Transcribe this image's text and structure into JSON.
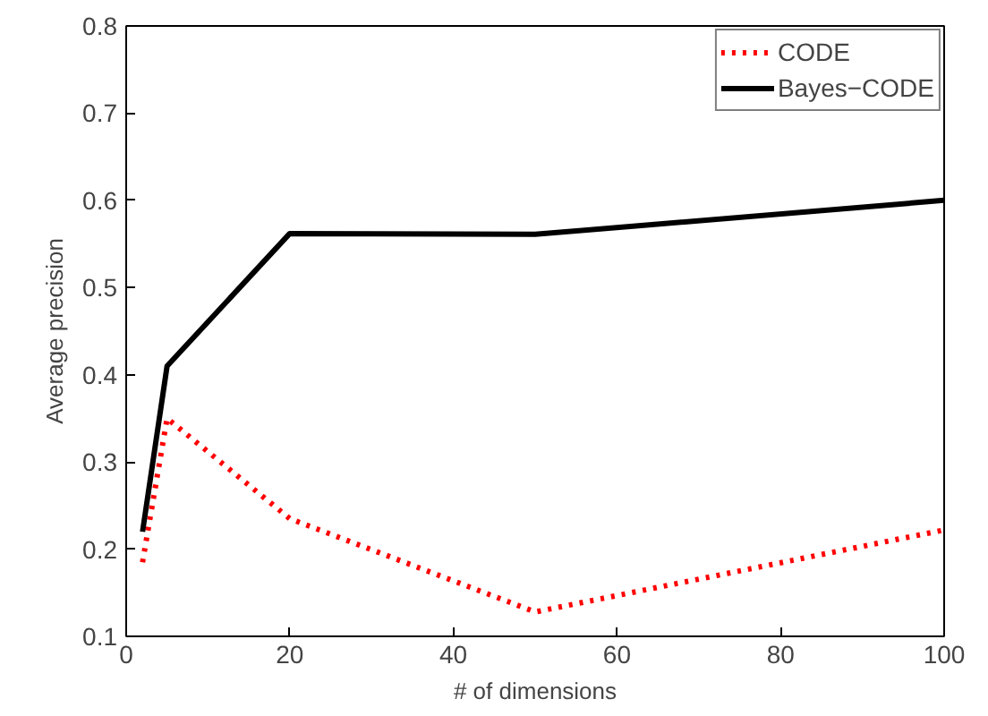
{
  "chart_data": {
    "type": "line",
    "xlabel": "# of dimensions",
    "ylabel": "Average precision",
    "x": [
      2,
      5,
      20,
      50,
      100
    ],
    "series": [
      {
        "name": "CODE",
        "color": "#ff0000",
        "line_style": "dotted",
        "values": [
          0.185,
          0.35,
          0.235,
          0.128,
          0.222
        ]
      },
      {
        "name": "Bayes−CODE",
        "color": "#000000",
        "line_style": "solid",
        "values": [
          0.22,
          0.41,
          0.562,
          0.561,
          0.6
        ]
      }
    ],
    "xlim": [
      0,
      100
    ],
    "xticks": [
      0,
      20,
      40,
      60,
      80,
      100
    ],
    "ylim": [
      0.1,
      0.8
    ],
    "yticks": [
      0.1,
      0.2,
      0.3,
      0.4,
      0.5,
      0.6,
      0.7,
      0.8
    ],
    "grid": false,
    "legend": "top right",
    "marker": "none"
  }
}
